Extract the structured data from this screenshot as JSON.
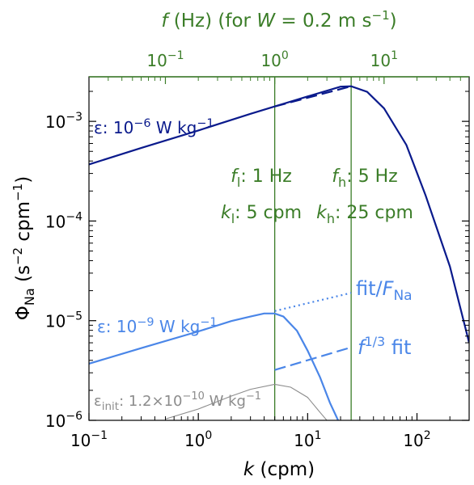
{
  "chart_data": {
    "type": "line",
    "axes": {
      "x": {
        "label_var": "k",
        "label_unit": "(cpm)",
        "scale": "log",
        "lim": [
          0.1,
          300
        ],
        "ticks": [
          {
            "value": 0.1,
            "base": "10",
            "exp": "−1"
          },
          {
            "value": 1,
            "base": "10",
            "exp": "0"
          },
          {
            "value": 10,
            "base": "10",
            "exp": "1"
          },
          {
            "value": 100,
            "base": "10",
            "exp": "2"
          }
        ]
      },
      "y": {
        "label_main": "Φ",
        "label_sub": "Na",
        "label_open": " (s",
        "label_exp1": "−2",
        "label_mid": " cpm",
        "label_exp2": "−1",
        "label_close": ")",
        "scale": "log",
        "lim": [
          1e-06,
          0.0028
        ],
        "ticks": [
          {
            "value": 1e-06,
            "base": "10",
            "exp": "−6"
          },
          {
            "value": 1e-05,
            "base": "10",
            "exp": "−5"
          },
          {
            "value": 0.0001,
            "base": "10",
            "exp": "−4"
          },
          {
            "value": 0.001,
            "base": "10",
            "exp": "−3"
          }
        ]
      },
      "top": {
        "color": "#3b7d28",
        "label_var": "f",
        "label_unit": " (Hz)  (for ",
        "label_var2": "W",
        "label_eq": " = 0.2 m s",
        "label_exp": "−1",
        "label_close": ")",
        "scale": "log",
        "lim": [
          0.02,
          60
        ],
        "ticks": [
          {
            "value": 0.1,
            "base": "10",
            "exp": "−1"
          },
          {
            "value": 1,
            "base": "10",
            "exp": "0"
          },
          {
            "value": 10,
            "base": "10",
            "exp": "1"
          }
        ]
      }
    },
    "series": [
      {
        "color": "#0a1a8c",
        "x": [
          0.1,
          0.3,
          1,
          3,
          5,
          10,
          20,
          25,
          35,
          50,
          80,
          120,
          200,
          300
        ],
        "y": [
          0.00037,
          0.00054,
          0.00081,
          0.00119,
          0.00141,
          0.00178,
          0.00223,
          0.00225,
          0.00198,
          0.00135,
          0.00058,
          0.00018,
          3.5e-05,
          6e-06
        ]
      },
      {
        "color": "#4a86e8",
        "x": [
          0.1,
          0.3,
          1,
          2,
          3,
          4,
          5,
          6,
          8,
          10,
          13,
          16,
          19,
          20
        ],
        "y": [
          3.7e-06,
          5.3e-06,
          7.8e-06,
          9.9e-06,
          1.1e-05,
          1.18e-05,
          1.18e-05,
          1.1e-05,
          7.9e-06,
          5e-06,
          2.7e-06,
          1.5e-06,
          1e-06,
          9e-07
        ]
      },
      {
        "color": "#8c8c8c",
        "x": [
          0.5,
          1,
          2,
          3,
          5,
          7,
          10,
          13,
          15
        ],
        "y": [
          1.03e-06,
          1.3e-06,
          1.75e-06,
          2.05e-06,
          2.3e-06,
          2.15e-06,
          1.7e-06,
          1.2e-06,
          1e-06
        ]
      }
    ],
    "extra_lines": [
      {
        "color": "#0a1a8c",
        "style": "dashed",
        "x": [
          5,
          25
        ],
        "y": [
          0.00141,
          0.00225
        ]
      },
      {
        "color": "#4a86e8",
        "style": "dotted",
        "x": [
          5,
          25
        ],
        "y": [
          1.25e-05,
          1.9e-05
        ]
      },
      {
        "color": "#4a86e8",
        "style": "dashed",
        "x": [
          5,
          25
        ],
        "y": [
          3.2e-06,
          5.4e-06
        ]
      }
    ],
    "vlines": [
      {
        "x": 5,
        "color": "#3b7d28"
      },
      {
        "x": 25,
        "color": "#3b7d28"
      }
    ],
    "annotations": {
      "eps_high": {
        "prefix": "ε: 10",
        "exp": "−6",
        "unit": " W kg",
        "exp2": "−1",
        "color": "#0a1a8c"
      },
      "eps_low": {
        "prefix": "ε: 10",
        "exp": "−9",
        "unit": " W kg",
        "exp2": "−1",
        "color": "#4a86e8"
      },
      "eps_init": {
        "prefix": "ε",
        "sub": "init",
        "mid": ": 1.2×10",
        "exp": "−10",
        "unit": " W kg",
        "exp2": "−1",
        "color": "#8c8c8c"
      },
      "fl": {
        "var": "f",
        "sub": "l",
        "value": ": 1 Hz"
      },
      "kl": {
        "var": "k",
        "sub": "l",
        "value": ": 5 cpm"
      },
      "fh": {
        "var": "f",
        "sub": "h",
        "value": ": 5 Hz"
      },
      "kh": {
        "var": "k",
        "sub": "h",
        "value": ": 25 cpm"
      },
      "fit_fna": {
        "pre": "fit/",
        "var": "F",
        "sub": "Na"
      },
      "f13_fit": {
        "var": "f",
        "exp": "1/3",
        "post": " fit"
      }
    }
  }
}
